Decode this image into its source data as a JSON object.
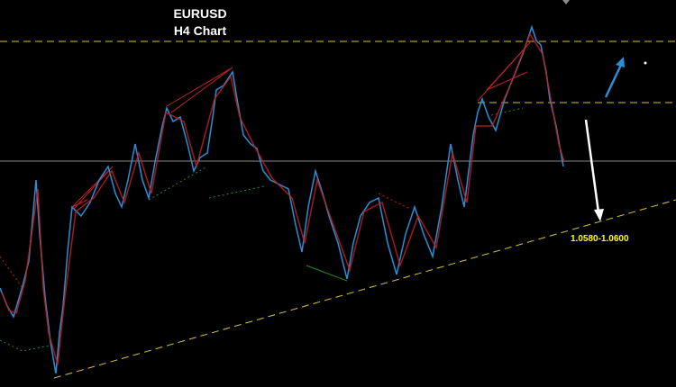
{
  "header": {
    "symbol": "EURUSD",
    "timeframe": "H4 Chart"
  },
  "annotations": {
    "target": "1.0580-1.0600"
  }
}
